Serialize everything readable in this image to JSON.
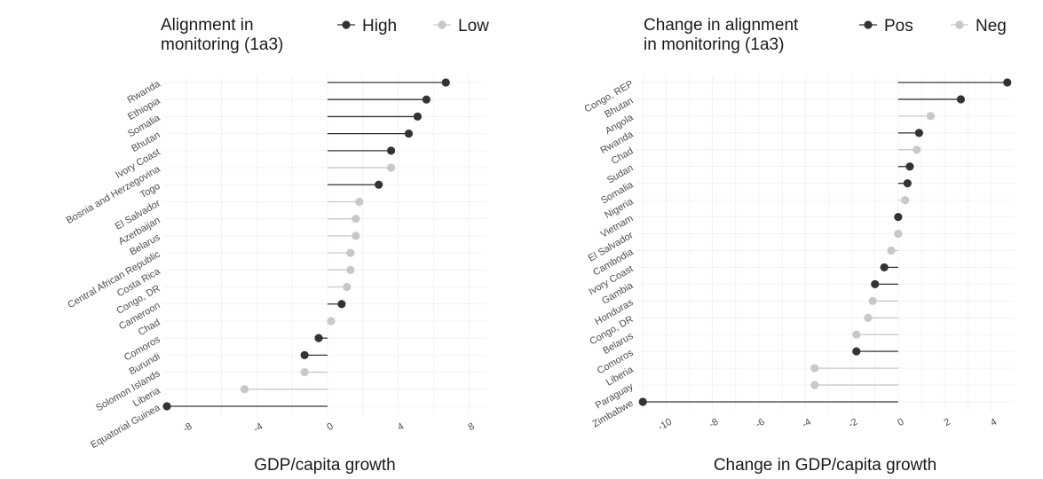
{
  "colors": {
    "high": "#333333",
    "low": "#c8c8c8"
  },
  "chart_data": [
    {
      "type": "lollipop",
      "title": "",
      "xlabel": "GDP/capita growth",
      "ylabel": "",
      "xlim": [
        -9.2,
        8.9
      ],
      "xticks": [
        -8,
        -4,
        0,
        4,
        8
      ],
      "grid": true,
      "legend": {
        "title_lines": [
          "Alignment in",
          "monitoring (1a3)"
        ],
        "placement": "top",
        "entries": [
          {
            "key": "High",
            "label": "High"
          },
          {
            "key": "Low",
            "label": "Low"
          }
        ]
      },
      "categories": [
        "Rwanda",
        "Ethiopia",
        "Somalia",
        "Bhutan",
        "Ivory Coast",
        "Bosnia and Herzegovina",
        "Togo",
        "El Salvador",
        "Azerbaijan",
        "Belarus",
        "Central African Republic",
        "Costa Rica",
        "Congo, DR",
        "Cameroon",
        "Chad",
        "Comoros",
        "Burundi",
        "Solomon Islands",
        "Liberia",
        "Equatorial Guinea"
      ],
      "values": [
        6.7,
        5.6,
        5.1,
        4.6,
        3.6,
        3.6,
        2.9,
        1.8,
        1.6,
        1.6,
        1.3,
        1.3,
        1.1,
        0.8,
        0.2,
        -0.5,
        -1.3,
        -1.3,
        -4.7,
        -9.1
      ],
      "groups": [
        "High",
        "High",
        "High",
        "High",
        "High",
        "Low",
        "High",
        "Low",
        "Low",
        "Low",
        "Low",
        "Low",
        "Low",
        "High",
        "Low",
        "High",
        "High",
        "Low",
        "Low",
        "High"
      ]
    },
    {
      "type": "lollipop",
      "title": "",
      "xlabel": "Change in GDP/capita growth",
      "ylabel": "",
      "xlim": [
        -11.2,
        4.9
      ],
      "xticks": [
        -10,
        -8,
        -6,
        -4,
        -2,
        0,
        2,
        4
      ],
      "grid": true,
      "legend": {
        "title_lines": [
          "Change in alignment",
          "in monitoring (1a3)"
        ],
        "placement": "top",
        "entries": [
          {
            "key": "Pos",
            "label": "Pos"
          },
          {
            "key": "Neg",
            "label": "Neg"
          }
        ]
      },
      "categories": [
        "Congo, REP",
        "Bhutan",
        "Angola",
        "Rwanda",
        "Chad",
        "Sudan",
        "Somalia",
        "Nigeria",
        "Vietnam",
        "El Salvador",
        "Cambodia",
        "Ivory Coast",
        "Gambia",
        "Honduras",
        "Congo, DR",
        "Belarus",
        "Comoros",
        "Liberia",
        "Paraguay",
        "Zimbabwe"
      ],
      "values": [
        4.7,
        2.7,
        1.4,
        0.9,
        0.8,
        0.5,
        0.4,
        0.3,
        0.0,
        0.0,
        -0.3,
        -0.6,
        -1.0,
        -1.1,
        -1.3,
        -1.8,
        -1.8,
        -3.6,
        -3.6,
        -11.0
      ],
      "groups": [
        "Pos",
        "Pos",
        "Neg",
        "Pos",
        "Neg",
        "Pos",
        "Pos",
        "Neg",
        "Pos",
        "Neg",
        "Neg",
        "Pos",
        "Pos",
        "Neg",
        "Neg",
        "Neg",
        "Pos",
        "Neg",
        "Neg",
        "Pos"
      ]
    }
  ]
}
